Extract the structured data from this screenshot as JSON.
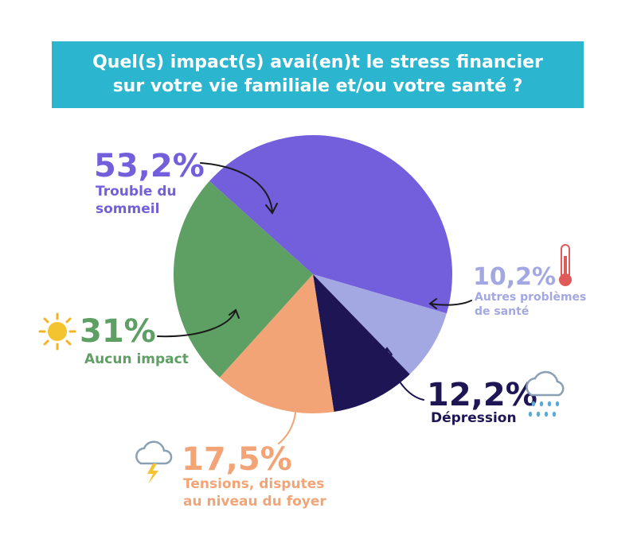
{
  "title_lines": [
    "Quel(s) impact(s) avai(en)t le stress financier",
    "sur votre vie familiale et/ou votre santé ?"
  ],
  "chart_data": {
    "type": "pie",
    "categories": [
      "Trouble du sommeil",
      "Autres problèmes de santé",
      "Dépression",
      "Tensions, disputes au niveau du foyer",
      "Aucun impact"
    ],
    "values": [
      53.2,
      10.2,
      12.2,
      17.5,
      31
    ],
    "value_labels": [
      "53,2%",
      "10,2%",
      "12,2%",
      "17,5%",
      "31%"
    ],
    "label_lines": [
      [
        "Trouble du",
        "sommeil"
      ],
      [
        "Autres problèmes",
        "de santé"
      ],
      [
        "Dépression"
      ],
      [
        "Tensions, disputes",
        "au niveau du foyer"
      ],
      [
        "Aucun impact"
      ]
    ],
    "colors": [
      "#735fdc",
      "#a3a8e3",
      "#1e1654",
      "#f3a476",
      "#5e9f63"
    ],
    "icons": [
      "moon-icon",
      "thermometer-icon",
      "rain-cloud-icon",
      "storm-cloud-icon",
      "sun-icon"
    ]
  }
}
